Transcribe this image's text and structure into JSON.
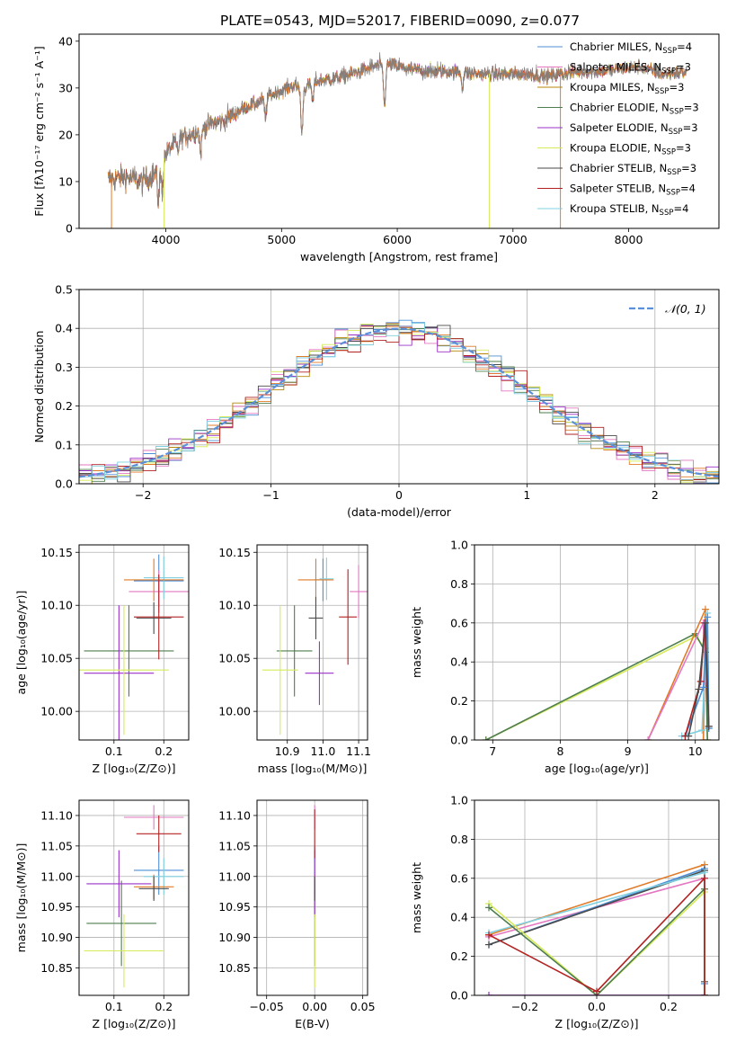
{
  "figure": {
    "title": "PLATE=0543, MJD=52017, FIBERID=0090, z=0.077"
  },
  "colors": {
    "chab_miles": "#4C8FD6",
    "salp_miles": "#E377C2",
    "krou_miles": "#B8860B",
    "chab_elodie": "#4E7D4E",
    "salp_elodie": "#9B30C8",
    "krou_elodie": "#D7EB5A",
    "chab_stelib": "#4A4A4A",
    "salp_stelib": "#B22222",
    "krou_stelib": "#7FD0E0",
    "orange": "#E07B28",
    "normal_curve": "#5B8FD8",
    "grid": "#B0B0B0"
  },
  "chart_data": [
    {
      "id": "spectrum",
      "type": "line",
      "xlabel": "wavelength [Angstrom, rest frame]",
      "ylabel": "Flux [fλ10⁻¹⁷ erg cm⁻² s⁻¹ A⁻¹]",
      "xlim": [
        3250,
        8780
      ],
      "ylim": [
        0,
        41.5
      ],
      "xticks": [
        4000,
        5000,
        6000,
        7000,
        8000
      ],
      "yticks": [
        0,
        10,
        20,
        30,
        40
      ],
      "grid": false,
      "legend_position": "top-right",
      "legend": [
        {
          "label": "Chabrier MILES, N",
          "sub": "SSP",
          "suffix": "=4",
          "color_key": "chab_miles"
        },
        {
          "label": "Salpeter MILES, N",
          "sub": "SSP",
          "suffix": "=3",
          "color_key": "salp_miles"
        },
        {
          "label": "Kroupa MILES, N",
          "sub": "SSP",
          "suffix": "=3",
          "color_key": "krou_miles"
        },
        {
          "label": "Chabrier ELODIE, N",
          "sub": "SSP",
          "suffix": "=3",
          "color_key": "chab_elodie"
        },
        {
          "label": "Salpeter ELODIE, N",
          "sub": "SSP",
          "suffix": "=3",
          "color_key": "salp_elodie"
        },
        {
          "label": "Kroupa ELODIE, N",
          "sub": "SSP",
          "suffix": "=3",
          "color_key": "krou_elodie"
        },
        {
          "label": "Chabrier STELIB, N",
          "sub": "SSP",
          "suffix": "=3",
          "color_key": "chab_stelib"
        },
        {
          "label": "Salpeter STELIB, N",
          "sub": "SSP",
          "suffix": "=4",
          "color_key": "salp_stelib"
        },
        {
          "label": "Kroupa STELIB, N",
          "sub": "SSP",
          "suffix": "=4",
          "color_key": "krou_stelib"
        }
      ],
      "continuum": {
        "x": [
          3500,
          3650,
          3800,
          3950,
          4000,
          4100,
          4250,
          4400,
          4500,
          4650,
          4800,
          4900,
          5000,
          5100,
          5200,
          5300,
          5450,
          5600,
          5800,
          5950,
          6100,
          6300,
          6500,
          6700,
          6900,
          7100,
          7300,
          7500,
          7700,
          7900,
          8100,
          8300,
          8500
        ],
        "y": [
          10.5,
          11.0,
          10.0,
          12.5,
          16.0,
          19.0,
          20.5,
          22.5,
          23.0,
          25.5,
          27.0,
          28.5,
          29.5,
          30.5,
          30.0,
          31.5,
          32.0,
          33.0,
          34.5,
          35.0,
          34.0,
          33.5,
          33.5,
          33.0,
          33.0,
          33.0,
          32.5,
          33.5,
          33.5,
          34.0,
          34.5,
          33.0,
          33.5
        ]
      },
      "absorption_features": [
        {
          "x": 3934,
          "depth": 6.0
        },
        {
          "x": 3969,
          "depth": 5.5
        },
        {
          "x": 4102,
          "depth": 3.0
        },
        {
          "x": 4300,
          "depth": 5.0
        },
        {
          "x": 4861,
          "depth": 4.5
        },
        {
          "x": 5175,
          "depth": 10.0
        },
        {
          "x": 5270,
          "depth": 4.0
        },
        {
          "x": 5890,
          "depth": 9.0
        },
        {
          "x": 6563,
          "depth": 3.0
        }
      ],
      "truncations": [
        {
          "x": 3530,
          "color_key": "orange"
        },
        {
          "x": 3985,
          "color_key": "krou_elodie"
        },
        {
          "x": 6795,
          "color_key": "krou_elodie"
        },
        {
          "x": 7410,
          "color_key": "orange"
        }
      ]
    },
    {
      "id": "residuals",
      "type": "step",
      "xlabel": "(data-model)/error",
      "ylabel": "Normed distribution",
      "xlim": [
        -2.5,
        2.5
      ],
      "ylim": [
        0,
        0.5
      ],
      "xticks": [
        -2,
        -1,
        0,
        1,
        2
      ],
      "yticks": [
        0.0,
        0.1,
        0.2,
        0.3,
        0.4,
        0.5
      ],
      "grid": true,
      "legend_position": "top-right",
      "legend": [
        {
          "label": "𝒩(0, 1)",
          "color_key": "normal_curve",
          "style": "dashed"
        }
      ],
      "bin_width": 0.1,
      "bin_start": -2.5,
      "bins": 50
    },
    {
      "id": "age_vs_Z",
      "type": "errorbar",
      "xlabel": "Z [log₁₀(Z/Z⊙)]",
      "ylabel": "age  [log₁₀(age/yr)]",
      "xlim": [
        0.03,
        0.25
      ],
      "ylim": [
        9.973,
        10.157
      ],
      "xticks": [
        0.1,
        0.2
      ],
      "yticks": [
        10.0,
        10.05,
        10.1,
        10.15
      ],
      "grid": true,
      "points": [
        {
          "x": 0.19,
          "xerr": 0.05,
          "y": 10.123,
          "yerr": 0.025,
          "color_key": "chab_miles"
        },
        {
          "x": 0.19,
          "xerr": 0.06,
          "y": 10.113,
          "yerr": 0.02,
          "color_key": "salp_miles"
        },
        {
          "x": 0.2,
          "xerr": 0.04,
          "y": 10.126,
          "yerr": 0.02,
          "color_key": "krou_stelib"
        },
        {
          "x": 0.18,
          "xerr": 0.06,
          "y": 10.124,
          "yerr": 0.02,
          "color_key": "orange"
        },
        {
          "x": 0.13,
          "xerr": 0.09,
          "y": 10.057,
          "yerr": 0.043,
          "color_key": "chab_elodie"
        },
        {
          "x": 0.11,
          "xerr": 0.07,
          "y": 10.036,
          "yerr": 0.064,
          "color_key": "salp_elodie"
        },
        {
          "x": 0.12,
          "xerr": 0.09,
          "y": 10.039,
          "yerr": 0.061,
          "color_key": "krou_elodie"
        },
        {
          "x": 0.18,
          "xerr": 0.035,
          "y": 10.088,
          "yerr": 0.015,
          "color_key": "chab_stelib"
        },
        {
          "x": 0.19,
          "xerr": 0.05,
          "y": 10.089,
          "yerr": 0.04,
          "color_key": "salp_stelib"
        }
      ]
    },
    {
      "id": "age_vs_mass",
      "type": "errorbar",
      "xlabel": "mass [log₁₀(M/M⊙)]",
      "ylabel": "",
      "xlim": [
        10.815,
        11.125
      ],
      "ylim": [
        9.973,
        10.157
      ],
      "xticks": [
        10.9,
        11.0,
        11.1
      ],
      "yticks": [
        10.0,
        10.05,
        10.1,
        10.15
      ],
      "grid": true,
      "points": [
        {
          "x": 11.0,
          "xerr": 0.025,
          "y": 10.124,
          "yerr": 0.02,
          "color_key": "chab_miles"
        },
        {
          "x": 11.1,
          "xerr": 0.025,
          "y": 10.113,
          "yerr": 0.025,
          "color_key": "salp_miles"
        },
        {
          "x": 11.01,
          "xerr": 0.02,
          "y": 10.125,
          "yerr": 0.02,
          "color_key": "krou_stelib"
        },
        {
          "x": 10.98,
          "xerr": 0.05,
          "y": 10.124,
          "yerr": 0.02,
          "color_key": "orange"
        },
        {
          "x": 10.92,
          "xerr": 0.05,
          "y": 10.057,
          "yerr": 0.043,
          "color_key": "chab_elodie"
        },
        {
          "x": 10.99,
          "xerr": 0.04,
          "y": 10.036,
          "yerr": 0.03,
          "color_key": "salp_elodie"
        },
        {
          "x": 10.88,
          "xerr": 0.05,
          "y": 10.039,
          "yerr": 0.061,
          "color_key": "krou_elodie"
        },
        {
          "x": 10.98,
          "xerr": 0.02,
          "y": 10.088,
          "yerr": 0.02,
          "color_key": "chab_stelib"
        },
        {
          "x": 11.07,
          "xerr": 0.025,
          "y": 10.089,
          "yerr": 0.045,
          "color_key": "salp_stelib"
        }
      ]
    },
    {
      "id": "mass_weight_vs_age",
      "type": "line",
      "xlabel": "age  [log₁₀(age/yr)]",
      "ylabel": "mass weight",
      "xlim": [
        6.73,
        10.35
      ],
      "ylim": [
        0,
        1.0
      ],
      "xticks": [
        7,
        8,
        9,
        10
      ],
      "yticks": [
        0.0,
        0.2,
        0.4,
        0.6,
        0.8,
        1.0
      ],
      "grid": true,
      "series": [
        {
          "color_key": "krou_elodie",
          "x": [
            6.9,
            10.0,
            10.15,
            10.18
          ],
          "y": [
            0.0,
            0.53,
            0.47,
            0.0
          ]
        },
        {
          "color_key": "chab_elodie",
          "x": [
            6.9,
            10.0,
            10.15,
            10.18
          ],
          "y": [
            0.0,
            0.545,
            0.45,
            0.0
          ]
        },
        {
          "color_key": "orange",
          "x": [
            9.3,
            10.15,
            10.12
          ],
          "y": [
            0.0,
            0.67,
            0.0
          ]
        },
        {
          "color_key": "salp_miles",
          "x": [
            9.3,
            10.12,
            10.15
          ],
          "y": [
            0.0,
            0.6,
            0.3
          ]
        },
        {
          "color_key": "krou_stelib",
          "x": [
            9.8,
            10.1,
            10.18,
            10.2
          ],
          "y": [
            0.02,
            0.05,
            0.65,
            0.06
          ]
        },
        {
          "color_key": "chab_miles",
          "x": [
            9.85,
            10.12,
            10.18,
            10.2
          ],
          "y": [
            0.02,
            0.27,
            0.63,
            0.06
          ]
        },
        {
          "color_key": "salp_stelib",
          "x": [
            9.85,
            10.08,
            10.14,
            10.2
          ],
          "y": [
            0.02,
            0.3,
            0.6,
            0.07
          ]
        },
        {
          "color_key": "chab_stelib",
          "x": [
            9.9,
            10.05,
            10.15,
            10.2
          ],
          "y": [
            0.02,
            0.26,
            0.6,
            0.07
          ]
        }
      ]
    },
    {
      "id": "mass_vs_Z",
      "type": "errorbar",
      "xlabel": "Z [log₁₀(Z/Z⊙)]",
      "ylabel": "mass [log₁₀(M/M⊙)]",
      "xlim": [
        0.03,
        0.25
      ],
      "ylim": [
        10.805,
        11.125
      ],
      "xticks": [
        0.1,
        0.2
      ],
      "yticks": [
        10.85,
        10.9,
        10.95,
        11.0,
        11.05,
        11.1
      ],
      "grid": true,
      "points": [
        {
          "x": 0.19,
          "xerr": 0.05,
          "y": 11.01,
          "yerr": 0.04,
          "color_key": "chab_miles"
        },
        {
          "x": 0.18,
          "xerr": 0.06,
          "y": 11.097,
          "yerr": 0.02,
          "color_key": "salp_miles"
        },
        {
          "x": 0.2,
          "xerr": 0.04,
          "y": 11.0,
          "yerr": 0.03,
          "color_key": "krou_stelib"
        },
        {
          "x": 0.18,
          "xerr": 0.04,
          "y": 10.983,
          "yerr": 0.02,
          "color_key": "orange"
        },
        {
          "x": 0.115,
          "xerr": 0.07,
          "y": 10.923,
          "yerr": 0.07,
          "color_key": "chab_elodie"
        },
        {
          "x": 0.11,
          "xerr": 0.065,
          "y": 10.988,
          "yerr": 0.055,
          "color_key": "salp_elodie"
        },
        {
          "x": 0.12,
          "xerr": 0.08,
          "y": 10.878,
          "yerr": 0.06,
          "color_key": "krou_elodie"
        },
        {
          "x": 0.18,
          "xerr": 0.03,
          "y": 10.98,
          "yerr": 0.02,
          "color_key": "chab_stelib"
        },
        {
          "x": 0.19,
          "xerr": 0.045,
          "y": 11.07,
          "yerr": 0.03,
          "color_key": "salp_stelib"
        }
      ]
    },
    {
      "id": "mass_vs_ebv",
      "type": "errorbar",
      "xlabel": "E(B-V)",
      "ylabel": "",
      "xlim": [
        -0.06,
        0.055
      ],
      "ylim": [
        10.805,
        11.125
      ],
      "xticks": [
        -0.05,
        0.0,
        0.05
      ],
      "yticks": [
        10.85,
        10.9,
        10.95,
        11.0,
        11.05,
        11.1
      ],
      "grid": true,
      "points": [
        {
          "x": 0.0,
          "xerr": 0.0,
          "y": 11.01,
          "yerr": 0.04,
          "color_key": "chab_miles"
        },
        {
          "x": 0.0,
          "xerr": 0.0,
          "y": 11.097,
          "yerr": 0.02,
          "color_key": "salp_miles"
        },
        {
          "x": 0.0,
          "xerr": 0.0,
          "y": 10.983,
          "yerr": 0.02,
          "color_key": "orange"
        },
        {
          "x": 0.0,
          "xerr": 0.0,
          "y": 10.923,
          "yerr": 0.07,
          "color_key": "chab_elodie"
        },
        {
          "x": 0.0,
          "xerr": 0.0,
          "y": 10.988,
          "yerr": 0.055,
          "color_key": "salp_elodie"
        },
        {
          "x": 0.0,
          "xerr": 0.0,
          "y": 10.878,
          "yerr": 0.06,
          "color_key": "krou_elodie"
        },
        {
          "x": 0.0,
          "xerr": 0.0,
          "y": 10.98,
          "yerr": 0.02,
          "color_key": "chab_stelib"
        },
        {
          "x": 0.0,
          "xerr": 0.0,
          "y": 11.07,
          "yerr": 0.04,
          "color_key": "salp_stelib"
        }
      ]
    },
    {
      "id": "mass_weight_vs_Z",
      "type": "line",
      "xlabel": "Z [log₁₀(Z/Z⊙)]",
      "ylabel": "mass weight",
      "xlim": [
        -0.34,
        0.34
      ],
      "ylim": [
        0,
        1.0
      ],
      "xticks": [
        -0.2,
        0.0,
        0.2
      ],
      "yticks": [
        0.0,
        0.2,
        0.4,
        0.6,
        0.8,
        1.0
      ],
      "grid": true,
      "series": [
        {
          "color_key": "orange",
          "x": [
            -0.3,
            0.3,
            0.3
          ],
          "y": [
            0.31,
            0.67,
            0.0
          ]
        },
        {
          "color_key": "salp_miles",
          "x": [
            -0.3,
            0.3,
            0.3
          ],
          "y": [
            0.3,
            0.6,
            0.0
          ]
        },
        {
          "color_key": "chab_miles",
          "x": [
            -0.3,
            0.3,
            0.3
          ],
          "y": [
            0.26,
            0.65,
            0.06
          ]
        },
        {
          "color_key": "chab_stelib",
          "x": [
            -0.3,
            0.3,
            0.3
          ],
          "y": [
            0.26,
            0.64,
            0.07
          ]
        },
        {
          "color_key": "krou_stelib",
          "x": [
            -0.3,
            0.3,
            0.3
          ],
          "y": [
            0.32,
            0.63,
            0.0
          ]
        },
        {
          "color_key": "krou_elodie",
          "x": [
            -0.3,
            0.0,
            0.3,
            0.3
          ],
          "y": [
            0.47,
            0.0,
            0.53,
            0.0
          ]
        },
        {
          "color_key": "chab_elodie",
          "x": [
            -0.3,
            0.0,
            0.3,
            0.3
          ],
          "y": [
            0.45,
            0.0,
            0.545,
            0.0
          ]
        },
        {
          "color_key": "salp_elodie",
          "x": [
            -0.3,
            0.0,
            0.3
          ],
          "y": [
            0.0,
            0.0,
            0.0
          ]
        },
        {
          "color_key": "salp_stelib",
          "x": [
            -0.3,
            0.0,
            0.3,
            0.3
          ],
          "y": [
            0.31,
            0.02,
            0.6,
            0.0
          ]
        }
      ]
    }
  ]
}
